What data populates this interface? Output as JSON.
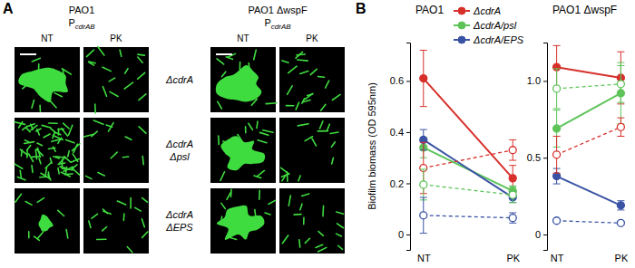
{
  "panel_a": {
    "label": "A",
    "groups": [
      {
        "strain": "PAO1",
        "reporter": {
          "main": "P",
          "sub": "cdrAB"
        }
      },
      {
        "strain": "PAO1 ΔwspF",
        "reporter": {
          "main": "P",
          "sub": "cdrAB"
        }
      }
    ],
    "conditions": [
      "NT",
      "PK"
    ],
    "rows": [
      [
        "ΔcdrA"
      ],
      [
        "ΔcdrA",
        "Δpsl"
      ],
      [
        "ΔcdrA",
        "ΔEPS"
      ]
    ]
  },
  "panel_b": {
    "label": "B"
  },
  "chart_data": [
    {
      "type": "line",
      "title": "PAO1",
      "y_label": "Biofilm biomass (OD 595nm)",
      "categories": [
        "NT",
        "PK"
      ],
      "ylim": [
        -0.06,
        0.75
      ],
      "yticks": [
        0,
        0.2,
        0.4,
        0.6
      ],
      "legend": "top-right",
      "series": [
        {
          "name": "ΔcdrA",
          "color": "#d7302b",
          "marker": "circle",
          "line_style": "solid",
          "values": [
            0.61,
            0.22
          ],
          "errors": [
            0.11,
            0.05
          ]
        },
        {
          "name": "ΔcdrA/psl",
          "color": "#5ec45a",
          "marker": "circle",
          "line_style": "solid",
          "values": [
            0.34,
            0.17
          ],
          "errors": [
            0.04,
            0.02
          ]
        },
        {
          "name": "ΔcdrA/EPS",
          "color": "#3a53a4",
          "marker": "circle",
          "line_style": "solid",
          "values": [
            0.37,
            0.145
          ],
          "errors": [
            0.04,
            0.02
          ]
        },
        {
          "color": "#d7302b",
          "marker": "open-circle",
          "line_style": "dashed",
          "values": [
            0.26,
            0.33
          ],
          "errors": [
            0.1,
            0.04
          ]
        },
        {
          "color": "#5ec45a",
          "marker": "open-circle",
          "line_style": "dashed",
          "values": [
            0.195,
            0.155
          ],
          "errors": [
            0.06,
            0.03
          ]
        },
        {
          "color": "#3a53a4",
          "marker": "open-circle",
          "line_style": "dashed",
          "values": [
            0.075,
            0.065
          ],
          "errors": [
            0.07,
            0.02
          ]
        }
      ]
    },
    {
      "type": "line",
      "title": "PAO1 ΔwspF",
      "categories": [
        "NT",
        "PK"
      ],
      "ylim": [
        -0.1,
        1.25
      ],
      "yticks": [
        0,
        0.5,
        {
          "value": 1,
          "label": "1.0"
        }
      ],
      "series": [
        {
          "color": "#d7302b",
          "marker": "circle",
          "line_style": "solid",
          "values": [
            1.09,
            1.02
          ],
          "errors": [
            0.14,
            0.17
          ]
        },
        {
          "color": "#5ec45a",
          "marker": "circle",
          "line_style": "solid",
          "values": [
            0.69,
            0.92
          ],
          "errors": [
            0.12,
            0.2
          ]
        },
        {
          "color": "#3a53a4",
          "marker": "circle",
          "line_style": "solid",
          "values": [
            0.38,
            0.19
          ],
          "errors": [
            0.05,
            0.03
          ]
        },
        {
          "color": "#d7302b",
          "marker": "open-circle",
          "line_style": "dashed",
          "values": [
            0.52,
            0.7
          ],
          "errors": [
            0.12,
            0.06
          ]
        },
        {
          "color": "#5ec45a",
          "marker": "open-circle",
          "line_style": "dashed",
          "values": [
            0.95,
            0.98
          ],
          "errors": [
            0.13,
            0.12
          ]
        },
        {
          "color": "#3a53a4",
          "marker": "open-circle",
          "line_style": "dashed",
          "values": [
            0.09,
            0.075
          ],
          "errors": [
            0.01,
            0.01
          ]
        }
      ]
    }
  ]
}
